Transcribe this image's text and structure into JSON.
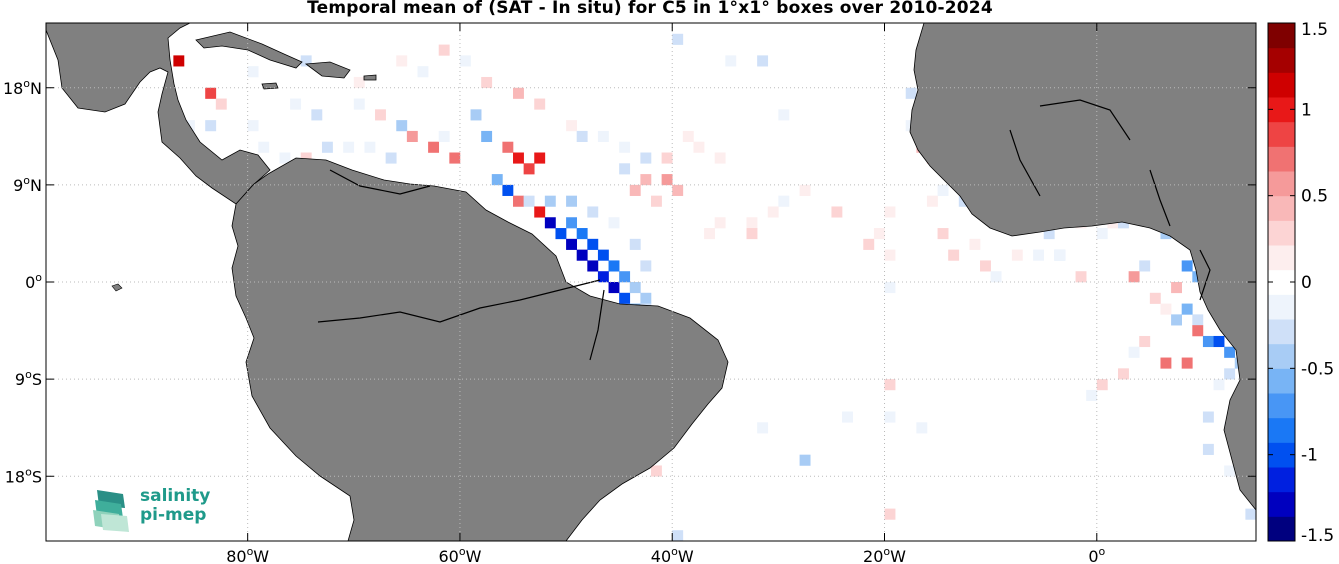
{
  "title": "Temporal mean of (SAT - In situ) for C5 in 1°x1° boxes over 2010-2024",
  "map": {
    "lon_range": [
      -99,
      15
    ],
    "lat_range": [
      -24,
      24
    ],
    "lon_ticks": [
      {
        "lon": -80,
        "label": "80oW"
      },
      {
        "lon": -60,
        "label": "60oW"
      },
      {
        "lon": -40,
        "label": "40oW"
      },
      {
        "lon": -20,
        "label": "20oW"
      },
      {
        "lon": 0,
        "label": "0o"
      }
    ],
    "lat_ticks": [
      {
        "lat": 18,
        "label": "18oN"
      },
      {
        "lat": 9,
        "label": "9oN"
      },
      {
        "lat": 0,
        "label": "0o"
      },
      {
        "lat": -9,
        "label": "9oS"
      },
      {
        "lat": -18,
        "label": "18oS"
      }
    ],
    "land_color": "#808080",
    "grid": true
  },
  "colorbar": {
    "min": -1.5,
    "max": 1.5,
    "ticks": [
      {
        "value": 1.5,
        "label": "1.5"
      },
      {
        "value": 1,
        "label": "1"
      },
      {
        "value": 0.5,
        "label": "0.5"
      },
      {
        "value": 0,
        "label": "0"
      },
      {
        "value": -0.5,
        "label": "-0.5"
      },
      {
        "value": -1,
        "label": "-1"
      },
      {
        "value": -1.5,
        "label": "-1.5"
      }
    ],
    "colors": [
      "#00007f",
      "#0000bf",
      "#0020e0",
      "#0050f0",
      "#1a78f5",
      "#4896f5",
      "#78b4f5",
      "#a8ccf5",
      "#cfe0f8",
      "#eef4fc",
      "#ffffff",
      "#fdeeee",
      "#fcd4d4",
      "#f9b8b8",
      "#f59a9a",
      "#f07272",
      "#ee4444",
      "#e81818",
      "#cf0000",
      "#a50000",
      "#7f0000"
    ]
  },
  "logo": {
    "line1": "salinity",
    "line2": "pi-mep"
  }
}
